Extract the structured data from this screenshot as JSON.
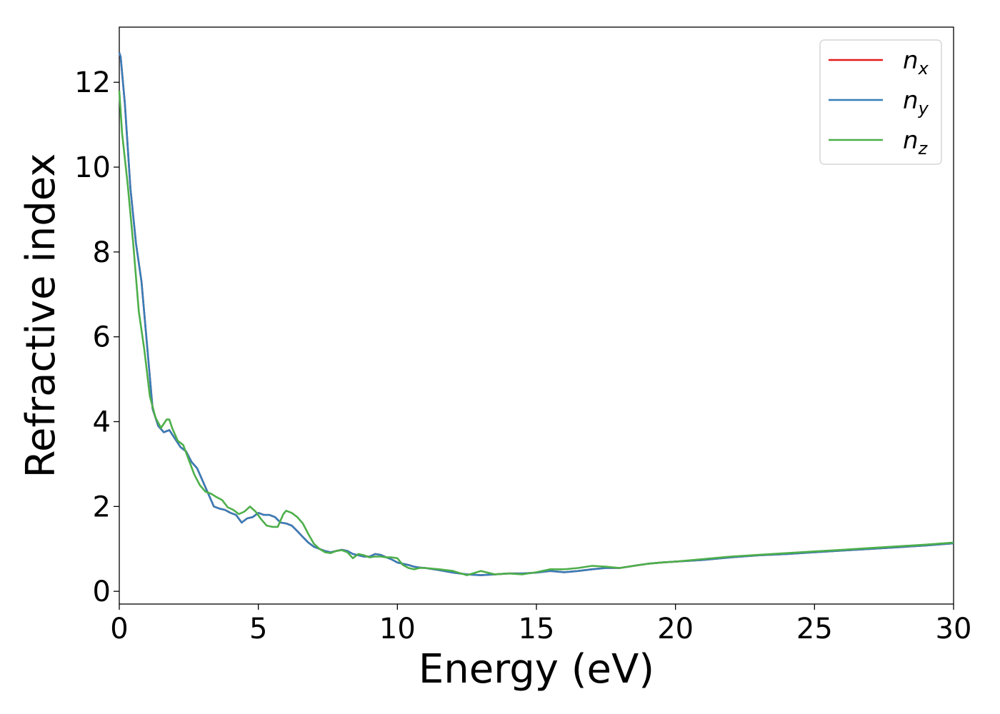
{
  "chart_data": {
    "type": "line",
    "title": "",
    "xlabel": "Energy (eV)",
    "ylabel": "Refractive index",
    "xlim": [
      0,
      30
    ],
    "ylim": [
      -0.3,
      13.3
    ],
    "xticks": [
      0,
      5,
      10,
      15,
      20,
      25,
      30
    ],
    "yticks": [
      0,
      2,
      4,
      6,
      8,
      10,
      12
    ],
    "grid": false,
    "legend_position": "top-right",
    "series": [
      {
        "name": "n_x",
        "legend_base": "n",
        "legend_sub": "x",
        "color": "#e41a1c",
        "x": [
          0,
          0.05,
          0.2,
          0.4,
          0.6,
          0.8,
          1.0,
          1.2,
          1.4,
          1.6,
          1.8,
          2.0,
          2.2,
          2.4,
          2.6,
          2.8,
          3.0,
          3.2,
          3.4,
          3.6,
          3.8,
          4.0,
          4.2,
          4.4,
          4.6,
          4.8,
          5.0,
          5.2,
          5.4,
          5.6,
          5.8,
          6.0,
          6.2,
          6.4,
          6.6,
          6.8,
          7.0,
          7.2,
          7.4,
          7.6,
          7.8,
          8.0,
          8.2,
          8.4,
          8.6,
          8.8,
          9.0,
          9.2,
          9.4,
          9.6,
          9.8,
          10.0,
          10.2,
          10.4,
          10.6,
          10.8,
          11.0,
          11.5,
          12.0,
          12.5,
          13.0,
          13.5,
          14.0,
          14.5,
          15.0,
          15.5,
          16.0,
          16.5,
          17.0,
          17.5,
          18.0,
          18.5,
          19.0,
          19.5,
          20.0,
          21.0,
          22.0,
          23.0,
          24.0,
          25.0,
          26.0,
          27.0,
          28.0,
          29.0,
          30.0
        ],
        "values": [
          12.7,
          12.6,
          11.5,
          9.5,
          8.2,
          7.3,
          5.8,
          4.3,
          3.9,
          3.75,
          3.8,
          3.6,
          3.4,
          3.3,
          3.05,
          2.9,
          2.6,
          2.3,
          2.0,
          1.95,
          1.92,
          1.85,
          1.8,
          1.62,
          1.72,
          1.75,
          1.85,
          1.8,
          1.8,
          1.75,
          1.62,
          1.6,
          1.55,
          1.42,
          1.28,
          1.15,
          1.05,
          1.0,
          0.95,
          0.92,
          0.95,
          0.98,
          0.95,
          0.88,
          0.85,
          0.82,
          0.82,
          0.88,
          0.86,
          0.8,
          0.75,
          0.68,
          0.65,
          0.62,
          0.58,
          0.56,
          0.55,
          0.5,
          0.44,
          0.4,
          0.38,
          0.4,
          0.42,
          0.42,
          0.44,
          0.48,
          0.45,
          0.48,
          0.52,
          0.55,
          0.55,
          0.6,
          0.65,
          0.68,
          0.7,
          0.74,
          0.8,
          0.85,
          0.88,
          0.92,
          0.96,
          1.0,
          1.04,
          1.08,
          1.13
        ]
      },
      {
        "name": "n_y",
        "legend_base": "n",
        "legend_sub": "y",
        "color": "#377eb8",
        "x": [
          0,
          0.05,
          0.2,
          0.4,
          0.6,
          0.8,
          1.0,
          1.2,
          1.4,
          1.6,
          1.8,
          2.0,
          2.2,
          2.4,
          2.6,
          2.8,
          3.0,
          3.2,
          3.4,
          3.6,
          3.8,
          4.0,
          4.2,
          4.4,
          4.6,
          4.8,
          5.0,
          5.2,
          5.4,
          5.6,
          5.8,
          6.0,
          6.2,
          6.4,
          6.6,
          6.8,
          7.0,
          7.2,
          7.4,
          7.6,
          7.8,
          8.0,
          8.2,
          8.4,
          8.6,
          8.8,
          9.0,
          9.2,
          9.4,
          9.6,
          9.8,
          10.0,
          10.2,
          10.4,
          10.6,
          10.8,
          11.0,
          11.5,
          12.0,
          12.5,
          13.0,
          13.5,
          14.0,
          14.5,
          15.0,
          15.5,
          16.0,
          16.5,
          17.0,
          17.5,
          18.0,
          18.5,
          19.0,
          19.5,
          20.0,
          21.0,
          22.0,
          23.0,
          24.0,
          25.0,
          26.0,
          27.0,
          28.0,
          29.0,
          30.0
        ],
        "values": [
          12.7,
          12.6,
          11.5,
          9.5,
          8.2,
          7.3,
          5.8,
          4.3,
          3.9,
          3.75,
          3.8,
          3.6,
          3.4,
          3.3,
          3.05,
          2.9,
          2.6,
          2.3,
          2.0,
          1.95,
          1.92,
          1.85,
          1.8,
          1.62,
          1.72,
          1.75,
          1.85,
          1.8,
          1.8,
          1.75,
          1.62,
          1.6,
          1.55,
          1.42,
          1.28,
          1.15,
          1.05,
          1.0,
          0.95,
          0.92,
          0.95,
          0.98,
          0.95,
          0.88,
          0.85,
          0.82,
          0.82,
          0.88,
          0.86,
          0.8,
          0.75,
          0.68,
          0.65,
          0.62,
          0.58,
          0.56,
          0.55,
          0.5,
          0.44,
          0.4,
          0.38,
          0.4,
          0.42,
          0.42,
          0.44,
          0.48,
          0.45,
          0.48,
          0.52,
          0.55,
          0.55,
          0.6,
          0.65,
          0.68,
          0.7,
          0.74,
          0.8,
          0.85,
          0.88,
          0.92,
          0.96,
          1.0,
          1.04,
          1.08,
          1.13
        ]
      },
      {
        "name": "n_z",
        "legend_base": "n",
        "legend_sub": "z",
        "color": "#4daf4a",
        "x": [
          0,
          0.1,
          0.3,
          0.5,
          0.7,
          0.9,
          1.1,
          1.3,
          1.5,
          1.7,
          1.8,
          1.9,
          2.1,
          2.3,
          2.5,
          2.7,
          2.9,
          3.1,
          3.3,
          3.5,
          3.7,
          3.9,
          4.1,
          4.3,
          4.5,
          4.7,
          4.9,
          5.1,
          5.3,
          5.5,
          5.7,
          5.9,
          6.0,
          6.2,
          6.4,
          6.6,
          6.8,
          7.0,
          7.2,
          7.4,
          7.6,
          7.8,
          8.0,
          8.2,
          8.4,
          8.6,
          8.8,
          9.0,
          9.2,
          9.4,
          9.6,
          9.8,
          10.0,
          10.2,
          10.4,
          10.6,
          10.8,
          11.0,
          11.5,
          12.0,
          12.5,
          13.0,
          13.5,
          14.0,
          14.5,
          15.0,
          15.5,
          16.0,
          16.5,
          17.0,
          17.5,
          18.0,
          18.5,
          19.0,
          19.5,
          20.0,
          21.0,
          22.0,
          23.0,
          24.0,
          25.0,
          26.0,
          27.0,
          28.0,
          29.0,
          30.0
        ],
        "values": [
          11.8,
          10.8,
          9.6,
          8.2,
          6.6,
          5.7,
          4.6,
          4.1,
          3.85,
          4.05,
          4.05,
          3.85,
          3.55,
          3.45,
          3.1,
          2.75,
          2.5,
          2.35,
          2.3,
          2.22,
          2.15,
          1.98,
          1.92,
          1.82,
          1.88,
          2.0,
          1.88,
          1.7,
          1.55,
          1.52,
          1.52,
          1.82,
          1.9,
          1.85,
          1.75,
          1.6,
          1.35,
          1.12,
          1.0,
          0.92,
          0.9,
          0.95,
          0.97,
          0.92,
          0.78,
          0.88,
          0.85,
          0.8,
          0.82,
          0.82,
          0.8,
          0.8,
          0.78,
          0.62,
          0.55,
          0.52,
          0.55,
          0.55,
          0.52,
          0.48,
          0.38,
          0.48,
          0.4,
          0.42,
          0.4,
          0.45,
          0.52,
          0.52,
          0.55,
          0.6,
          0.58,
          0.55,
          0.6,
          0.65,
          0.68,
          0.7,
          0.76,
          0.82,
          0.86,
          0.9,
          0.94,
          0.98,
          1.02,
          1.06,
          1.1,
          1.15
        ]
      }
    ]
  }
}
